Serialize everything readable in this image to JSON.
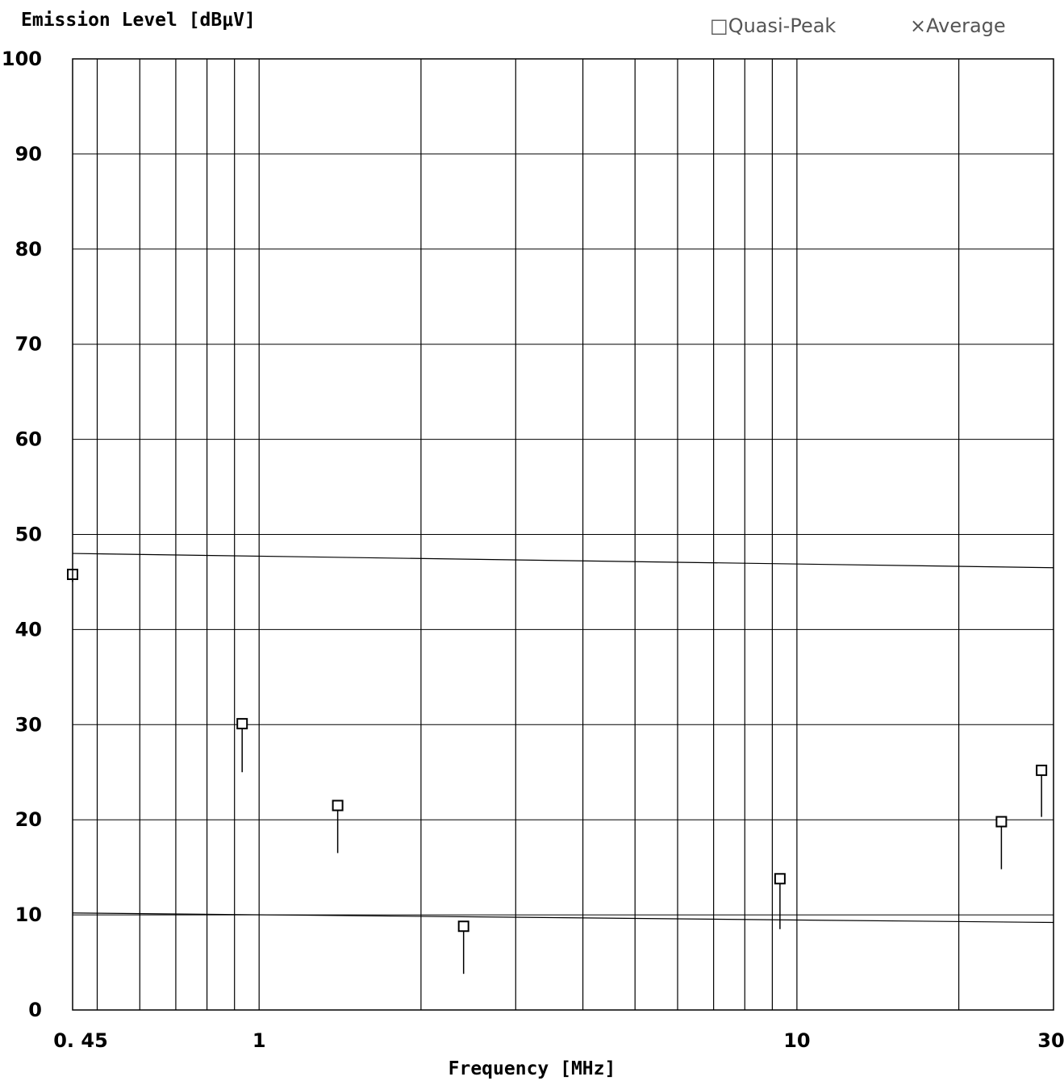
{
  "chart_data": {
    "type": "scatter",
    "ylabel": "Emission Level [dBμV]",
    "xlabel": "Frequency [MHz]",
    "x_scale": "log",
    "xlim": [
      0.45,
      30
    ],
    "ylim": [
      0,
      100
    ],
    "x_ticks": [
      {
        "value": 0.45,
        "label": "0. 45"
      },
      {
        "value": 1,
        "label": "1"
      },
      {
        "value": 10,
        "label": "10"
      },
      {
        "value": 30,
        "label": "30"
      }
    ],
    "y_ticks": [
      {
        "value": 0,
        "label": "0"
      },
      {
        "value": 10,
        "label": "10"
      },
      {
        "value": 20,
        "label": "20"
      },
      {
        "value": 30,
        "label": "30"
      },
      {
        "value": 40,
        "label": "40"
      },
      {
        "value": 50,
        "label": "50"
      },
      {
        "value": 60,
        "label": "60"
      },
      {
        "value": 70,
        "label": "70"
      },
      {
        "value": 80,
        "label": "80"
      },
      {
        "value": 90,
        "label": "90"
      },
      {
        "value": 100,
        "label": "100"
      }
    ],
    "grid": true,
    "legend_position": "top-right",
    "legend": [
      {
        "symbol": "□",
        "label": "Quasi-Peak"
      },
      {
        "symbol": "×",
        "label": "Average"
      }
    ],
    "series": [
      {
        "name": "Quasi-Peak",
        "marker": "square",
        "points": [
          {
            "x": 0.45,
            "y": 45.8
          },
          {
            "x": 0.93,
            "y": 30.1
          },
          {
            "x": 1.4,
            "y": 21.5
          },
          {
            "x": 2.4,
            "y": 8.8
          },
          {
            "x": 9.3,
            "y": 13.8
          },
          {
            "x": 24.0,
            "y": 19.8
          },
          {
            "x": 28.5,
            "y": 25.2
          }
        ]
      },
      {
        "name": "Average",
        "marker": "x",
        "points": [
          {
            "x": 0.45,
            "y": 45.0
          },
          {
            "x": 0.93,
            "y": 25.0
          },
          {
            "x": 1.4,
            "y": 16.5
          },
          {
            "x": 2.4,
            "y": 3.8
          },
          {
            "x": 9.3,
            "y": 8.5
          },
          {
            "x": 24.0,
            "y": 14.8
          },
          {
            "x": 28.5,
            "y": 20.3
          }
        ]
      }
    ],
    "limit_lines": [
      {
        "y_start": 48,
        "y_end": 46.5
      },
      {
        "y_start": 10.2,
        "y_end": 9.2
      }
    ],
    "colors": {
      "grid": "#000000",
      "marker": "#000000",
      "background": "#ffffff"
    }
  }
}
